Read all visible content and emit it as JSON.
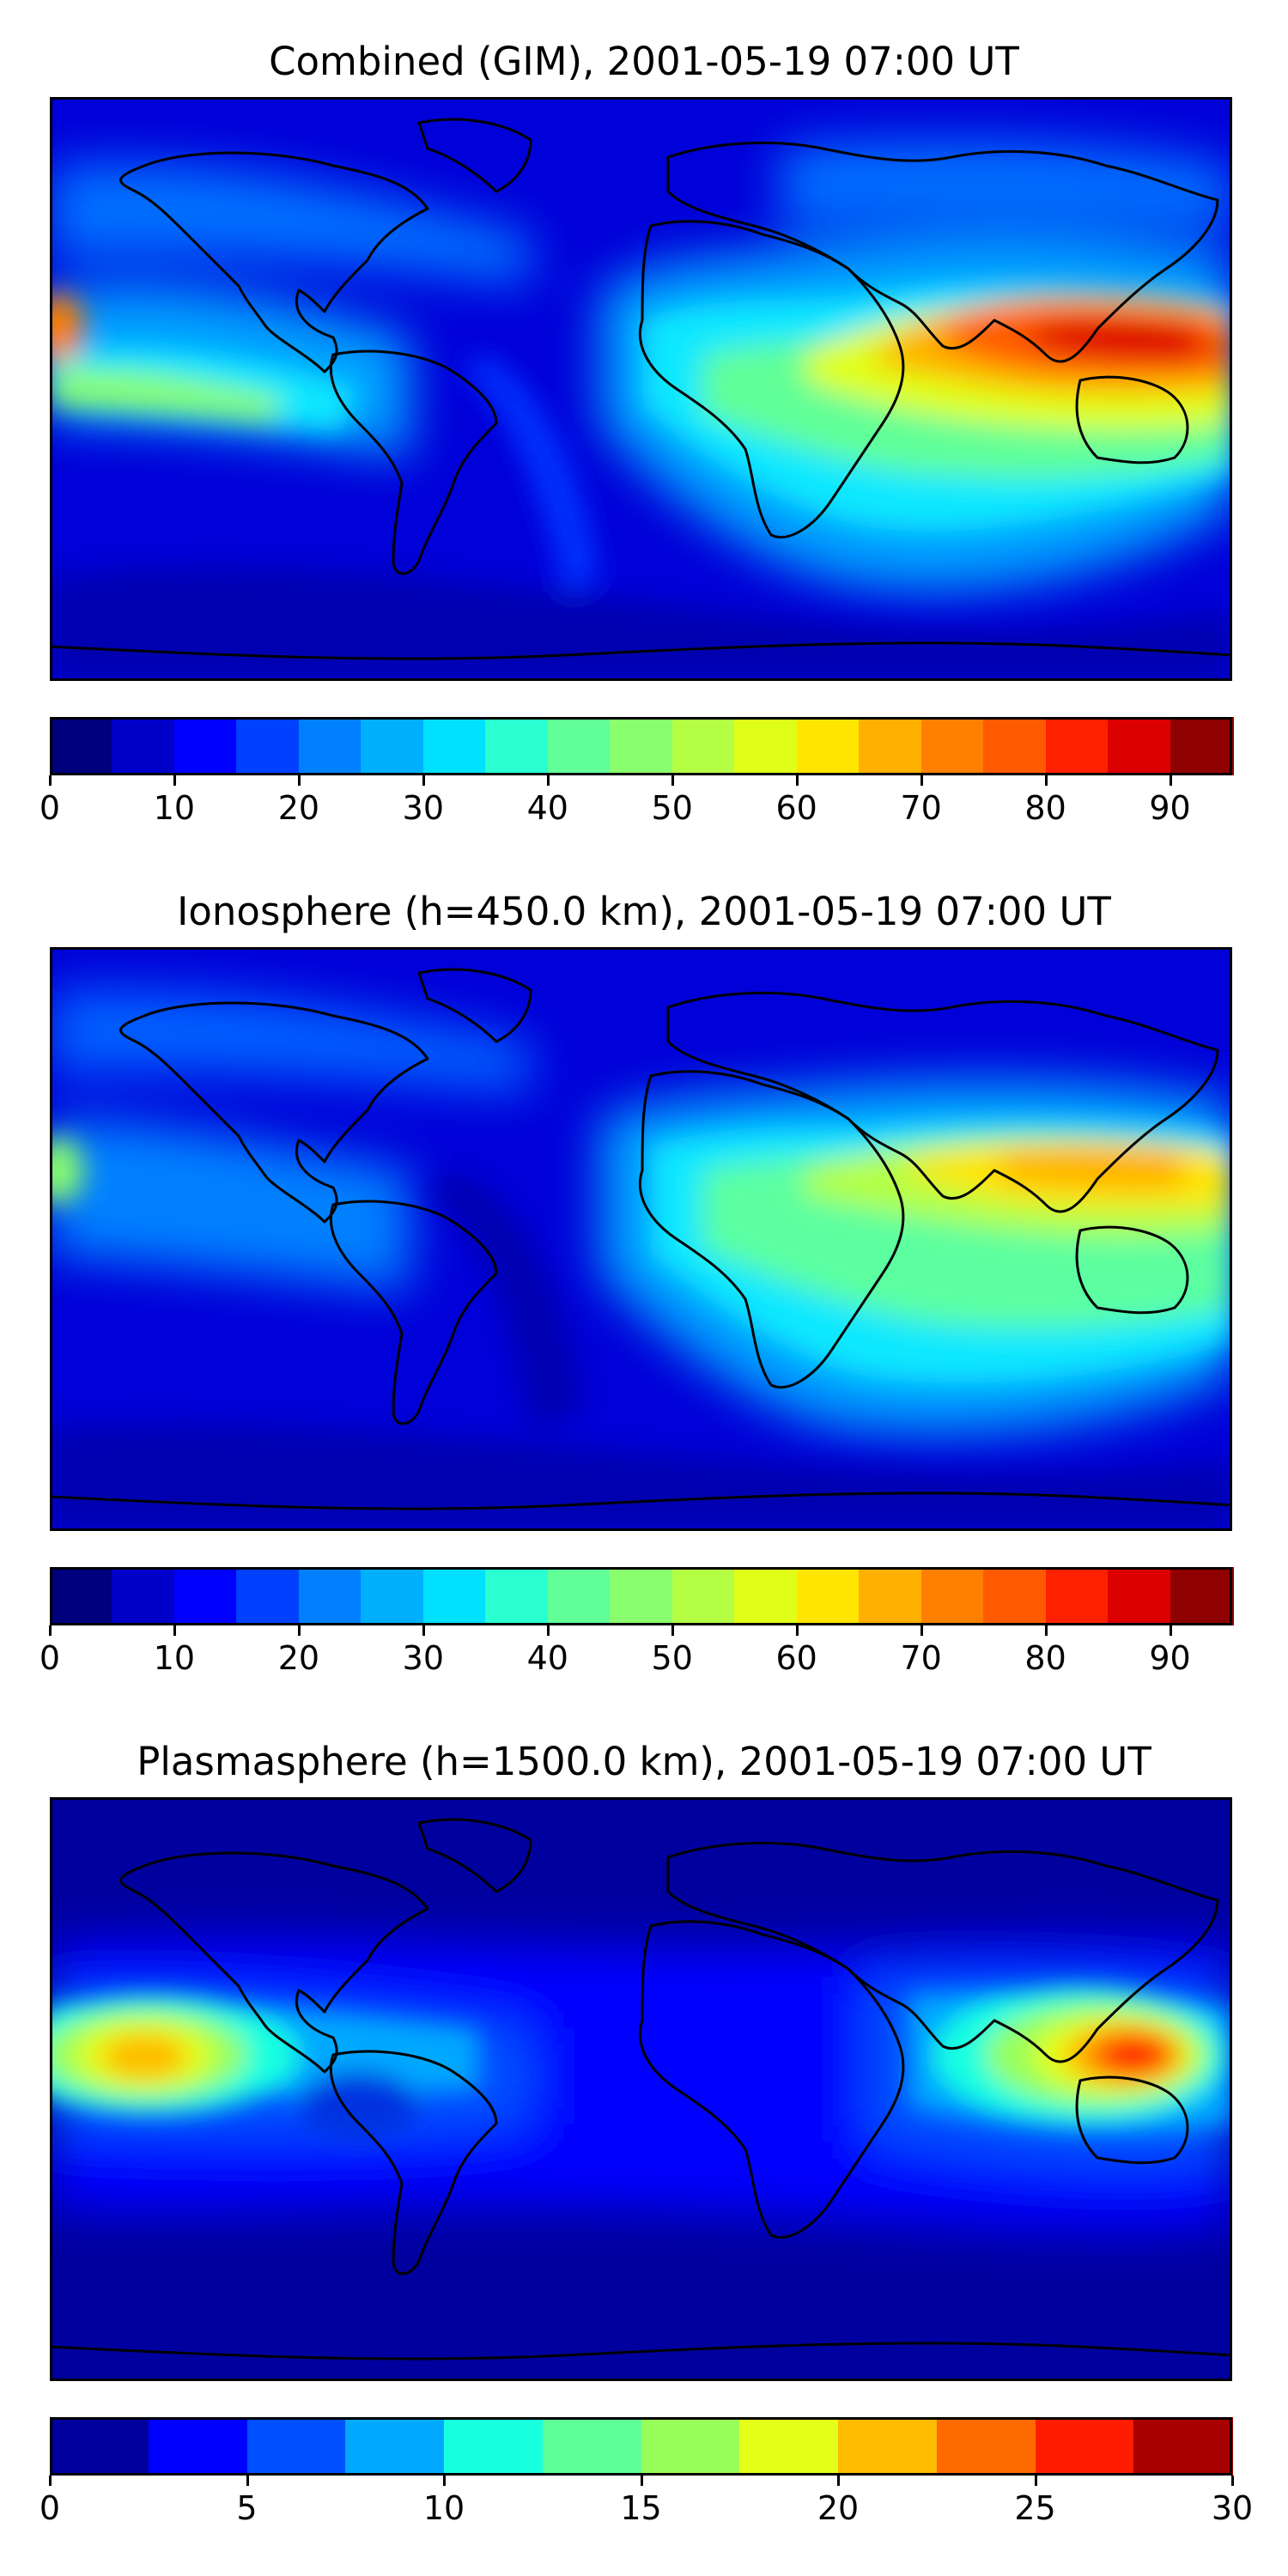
{
  "panels": [
    {
      "name": "combined",
      "title": "Combined (GIM), 2001-05-19 07:00 UT",
      "colorbar": {
        "levels": [
          0,
          5,
          10,
          15,
          20,
          25,
          30,
          35,
          40,
          45,
          50,
          55,
          60,
          65,
          70,
          75,
          80,
          85,
          90,
          95
        ],
        "colors": [
          "#00007f",
          "#0000c8",
          "#0000ff",
          "#0040ff",
          "#0080ff",
          "#00b0ff",
          "#00e0ff",
          "#29ffd0",
          "#60ff98",
          "#8aff6e",
          "#b4ff44",
          "#e0ff18",
          "#ffe500",
          "#ffb000",
          "#ff8000",
          "#ff5a00",
          "#ff2000",
          "#dd0000",
          "#8f0000"
        ],
        "tick_labels": [
          "0",
          "10",
          "20",
          "30",
          "40",
          "50",
          "60",
          "70",
          "80",
          "90"
        ],
        "tick_values": [
          0,
          10,
          20,
          30,
          40,
          50,
          60,
          70,
          80,
          90
        ],
        "vmin": 0,
        "vmax": 95
      }
    },
    {
      "name": "ionosphere",
      "title": "Ionosphere  (h=450.0 km), 2001-05-19 07:00 UT",
      "colorbar": {
        "levels": [
          0,
          5,
          10,
          15,
          20,
          25,
          30,
          35,
          40,
          45,
          50,
          55,
          60,
          65,
          70,
          75,
          80,
          85,
          90,
          95
        ],
        "colors": [
          "#00007f",
          "#0000c8",
          "#0000ff",
          "#0040ff",
          "#0080ff",
          "#00b0ff",
          "#00e0ff",
          "#29ffd0",
          "#60ff98",
          "#8aff6e",
          "#b4ff44",
          "#e0ff18",
          "#ffe500",
          "#ffb000",
          "#ff8000",
          "#ff5a00",
          "#ff2000",
          "#dd0000",
          "#8f0000"
        ],
        "tick_labels": [
          "0",
          "10",
          "20",
          "30",
          "40",
          "50",
          "60",
          "70",
          "80",
          "90"
        ],
        "tick_values": [
          0,
          10,
          20,
          30,
          40,
          50,
          60,
          70,
          80,
          90
        ],
        "vmin": 0,
        "vmax": 95
      }
    },
    {
      "name": "plasmasphere",
      "title": "Plasmasphere (h=1500.0 km), 2001-05-19 07:00 UT",
      "colorbar": {
        "levels": [
          0,
          2.5,
          5,
          7.5,
          10,
          12.5,
          15,
          17.5,
          20,
          22.5,
          25,
          27.5,
          30
        ],
        "colors": [
          "#00009e",
          "#0000ff",
          "#0050ff",
          "#00a8ff",
          "#18ffe0",
          "#5cff98",
          "#98ff5a",
          "#e4ff18",
          "#ffbb00",
          "#ff6a00",
          "#ff1c00",
          "#a80000"
        ],
        "tick_labels": [
          "0",
          "5",
          "10",
          "15",
          "20",
          "25",
          "30"
        ],
        "tick_values": [
          0,
          5,
          10,
          15,
          20,
          25,
          30
        ],
        "vmin": 0,
        "vmax": 30
      }
    }
  ]
}
